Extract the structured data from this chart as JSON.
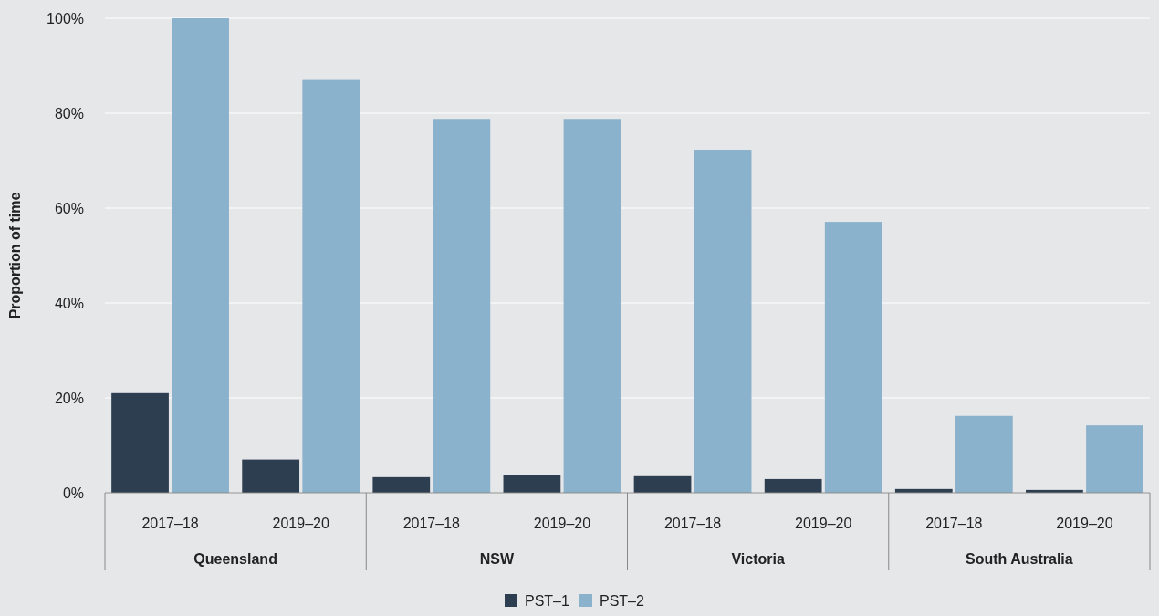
{
  "chart_data": {
    "type": "bar",
    "ylabel": "Proportion of time",
    "categories": [
      "2017–18",
      "2019–20",
      "2017–18",
      "2019–20",
      "2017–18",
      "2019–20",
      "2017–18",
      "2019–20"
    ],
    "annotations": [
      "Queensland",
      "NSW",
      "Victoria",
      "South Australia"
    ],
    "series": [
      {
        "name": "PST–1",
        "color": "#2d3e50",
        "values": [
          21,
          7,
          3.3,
          3.7,
          3.5,
          2.9,
          0.8,
          0.6
        ]
      },
      {
        "name": "PST–2",
        "color": "#8bb2cc",
        "values": [
          100,
          87,
          78.8,
          78.8,
          72.3,
          57.1,
          16.2,
          14.2
        ]
      }
    ],
    "ylim": [
      0,
      100
    ],
    "yticks": [
      {
        "value": 0,
        "label": "0%"
      },
      {
        "value": 20,
        "label": "20%"
      },
      {
        "value": 40,
        "label": "40%"
      },
      {
        "value": 60,
        "label": "60%"
      },
      {
        "value": 80,
        "label": "80%"
      },
      {
        "value": 100,
        "label": "100%"
      }
    ],
    "grid": "y",
    "legend": "bottom"
  }
}
